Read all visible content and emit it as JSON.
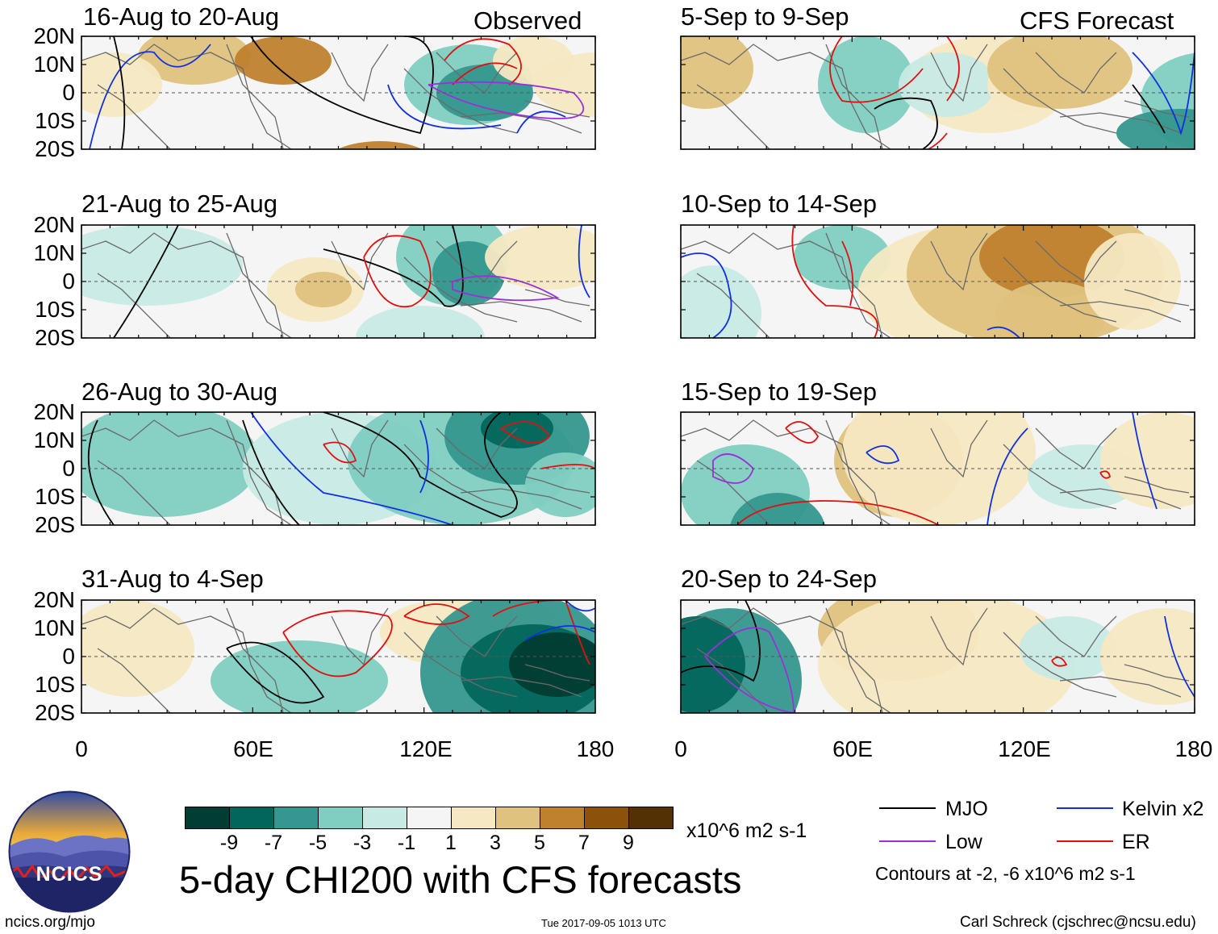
{
  "colors": {
    "mjo": "#000000",
    "low": "#9b30d9",
    "kelvin": "#1030e0",
    "er": "#e01010",
    "coast": "#6a6a6a",
    "cb": [
      "#013d32",
      "#02665c",
      "#35978f",
      "#80cdc1",
      "#c7eae5",
      "#f5f5f5",
      "#f6e8c3",
      "#dfc27d",
      "#bf812d",
      "#8c510a",
      "#543005"
    ]
  },
  "header": {
    "observed": "Observed",
    "forecast": "CFS Forecast"
  },
  "lat_labels": [
    "20N",
    "10N",
    "0",
    "10S",
    "20S"
  ],
  "lon_labels": [
    "0",
    "60E",
    "120E",
    "180"
  ],
  "panels": [
    {
      "id": "p1",
      "title": "16-Aug to 20-Aug",
      "col": 0,
      "row": 0
    },
    {
      "id": "p2",
      "title": "21-Aug to 25-Aug",
      "col": 0,
      "row": 1
    },
    {
      "id": "p3",
      "title": "26-Aug to 30-Aug",
      "col": 0,
      "row": 2
    },
    {
      "id": "p4",
      "title": "31-Aug to 4-Sep",
      "col": 0,
      "row": 3
    },
    {
      "id": "p5",
      "title": "5-Sep to 9-Sep",
      "col": 1,
      "row": 0
    },
    {
      "id": "p6",
      "title": "10-Sep to 14-Sep",
      "col": 1,
      "row": 1
    },
    {
      "id": "p7",
      "title": "15-Sep to 19-Sep",
      "col": 1,
      "row": 2
    },
    {
      "id": "p8",
      "title": "20-Sep to 24-Sep",
      "col": 1,
      "row": 3
    }
  ],
  "colorbar": {
    "labels": [
      "-9",
      "-7",
      "-5",
      "-3",
      "-1",
      "1",
      "3",
      "5",
      "7",
      "9"
    ],
    "units": "x10^6 m2 s-1"
  },
  "main_title": "5-day CHI200 with CFS forecasts",
  "legend": {
    "mjo": "MJO",
    "low": "Low",
    "kelvin": "Kelvin x2",
    "er": "ER",
    "contours_note": "Contours at -2, -6 x10^6 m2 s-1"
  },
  "logo": {
    "text": "NCICS"
  },
  "footer": {
    "url": "ncics.org/mjo",
    "timestamp": "Tue 2017-09-05 1013 UTC",
    "credit": "Carl Schreck (cjschrec@ncsu.edu)"
  }
}
